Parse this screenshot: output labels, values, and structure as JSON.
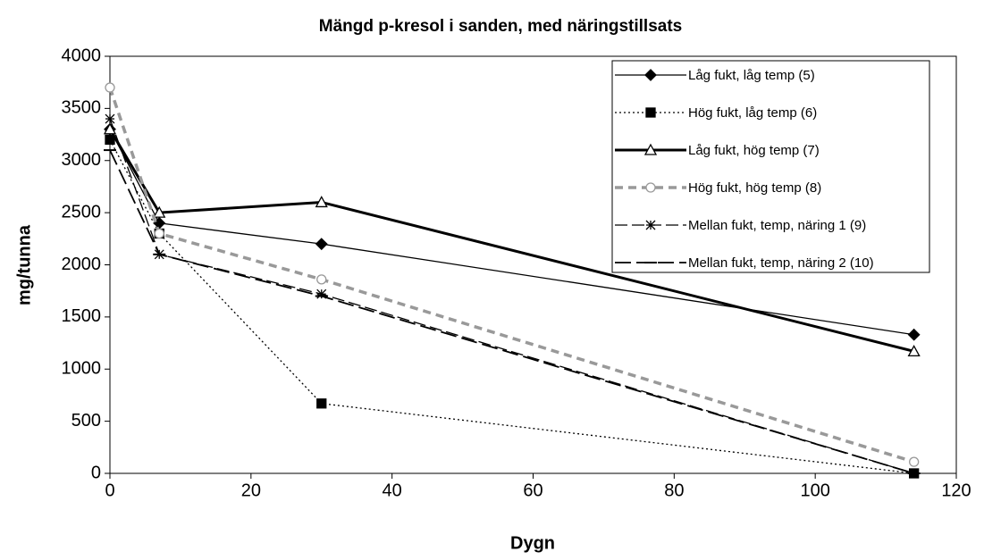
{
  "chart_data": {
    "type": "line",
    "title": "Mängd p-kresol i sanden, med näringstillsats",
    "x_label": "Dygn",
    "y_label": "mg/tunna",
    "x": [
      0,
      7,
      30,
      114
    ],
    "xlim": [
      0,
      120
    ],
    "xticks": [
      0,
      20,
      40,
      60,
      80,
      100,
      120
    ],
    "ylim": [
      0,
      4000
    ],
    "yticks": [
      0,
      500,
      1000,
      1500,
      2000,
      2500,
      3000,
      3500,
      4000
    ],
    "grid": false,
    "legend": "upper right",
    "series": [
      {
        "name": "Låg fukt, låg temp (5)",
        "color": "#000000",
        "marker": "diamond",
        "style": "solid",
        "values": [
          3300,
          2400,
          2200,
          1330
        ]
      },
      {
        "name": "Hög fukt, låg temp (6)",
        "color": "#000000",
        "marker": "square",
        "style": "dotted",
        "values": [
          3200,
          2300,
          670,
          0
        ]
      },
      {
        "name": "Låg fukt, hög temp (7)",
        "color": "#000000",
        "marker": "triangle",
        "style": "thick",
        "values": [
          3300,
          2500,
          2600,
          1170
        ]
      },
      {
        "name": "Hög fukt, hög temp (8)",
        "color": "#999999",
        "marker": "circle",
        "style": "dashed-thick",
        "values": [
          3700,
          2300,
          1860,
          110
        ]
      },
      {
        "name": "Mellan fukt, temp, näring 1 (9)",
        "color": "#000000",
        "marker": "star",
        "style": "dashed",
        "values": [
          3400,
          2100,
          1720,
          0
        ]
      },
      {
        "name": "Mellan fukt, temp, näring 2 (10)",
        "color": "#000000",
        "marker": "dash",
        "style": "longdash",
        "values": [
          3100,
          2100,
          1700,
          0
        ]
      }
    ]
  }
}
